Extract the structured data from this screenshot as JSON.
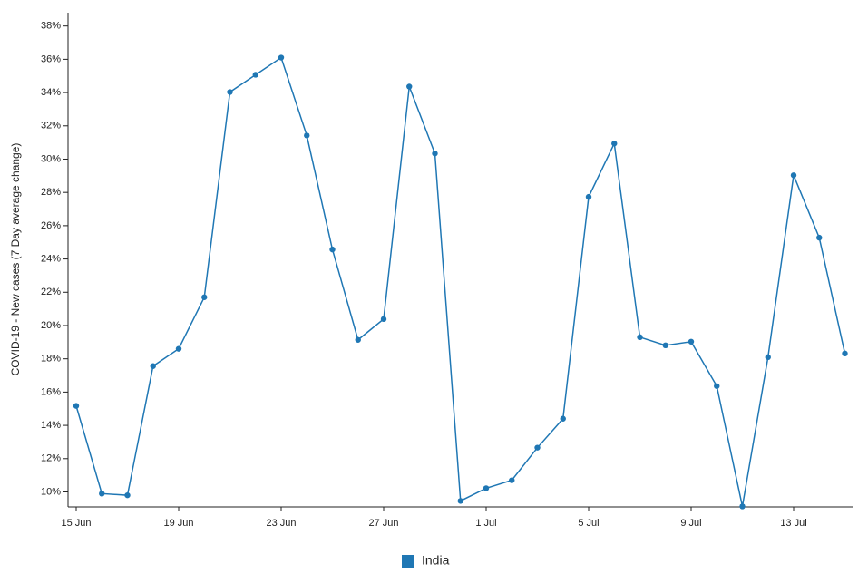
{
  "chart_data": {
    "type": "line",
    "y_label": "COVID-19 - New cases (7 Day average change)",
    "categories": [
      "15 Jun",
      null,
      null,
      null,
      "19 Jun",
      null,
      null,
      null,
      "23 Jun",
      null,
      null,
      null,
      "27 Jun",
      null,
      null,
      null,
      "1 Jul",
      null,
      null,
      null,
      "5 Jul",
      null,
      null,
      null,
      "9 Jul",
      null,
      null,
      null,
      "13 Jul",
      null,
      null
    ],
    "series": [
      {
        "name": "India",
        "color": "#1f77b4",
        "values": [
          15.17,
          9.9,
          9.8,
          17.56,
          18.6,
          21.7,
          34.03,
          35.07,
          36.1,
          31.42,
          24.57,
          19.14,
          20.39,
          34.36,
          30.34,
          9.46,
          10.22,
          10.7,
          12.66,
          14.4,
          27.73,
          30.94,
          19.3,
          18.81,
          19.03,
          16.36,
          9.13,
          18.1,
          29.03,
          25.28,
          18.32
        ]
      }
    ],
    "ylim": [
      9.1,
      38.8
    ],
    "yticks": [
      {
        "value": 10,
        "label": "10%"
      },
      {
        "value": 12,
        "label": "12%"
      },
      {
        "value": 14,
        "label": "14%"
      },
      {
        "value": 16,
        "label": "16%"
      },
      {
        "value": 18,
        "label": "18%"
      },
      {
        "value": 20,
        "label": "20%"
      },
      {
        "value": 22,
        "label": "22%"
      },
      {
        "value": 24,
        "label": "24%"
      },
      {
        "value": 26,
        "label": "26%"
      },
      {
        "value": 28,
        "label": "28%"
      },
      {
        "value": 30,
        "label": "30%"
      },
      {
        "value": 32,
        "label": "32%"
      },
      {
        "value": 34,
        "label": "34%"
      },
      {
        "value": 36,
        "label": "36%"
      },
      {
        "value": 38,
        "label": "38%"
      }
    ],
    "legend": "bottom"
  }
}
